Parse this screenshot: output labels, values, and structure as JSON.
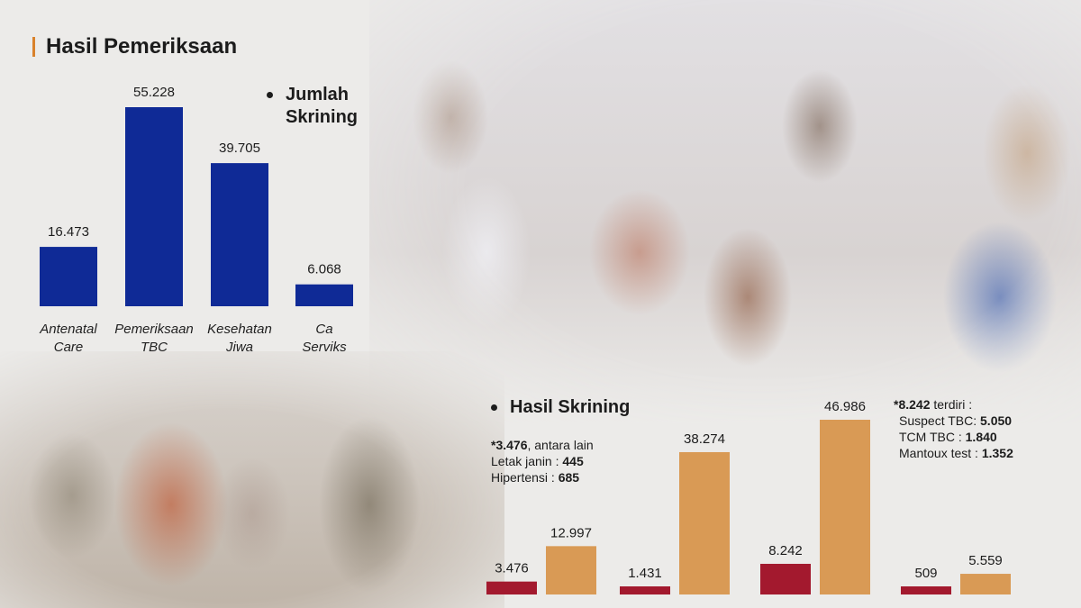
{
  "header": {
    "title": "Hasil Pemeriksaan"
  },
  "chart_data": [
    {
      "type": "bar",
      "series_label": "Jumlah Skrining",
      "categories": [
        "Antenatal Care",
        "Pemeriksaan TBC",
        "Kesehatan Jiwa",
        "Ca Serviks"
      ],
      "values": [
        16473,
        55228,
        39705,
        6068
      ],
      "value_labels": [
        "16.473",
        "55.228",
        "39.705",
        "6.068"
      ],
      "colors": [
        "#0f2a96"
      ]
    },
    {
      "type": "bar",
      "series_label": "Hasil Skrining",
      "groups": [
        {
          "values": [
            3476,
            12997
          ],
          "value_labels": [
            "3.476",
            "12.997"
          ]
        },
        {
          "values": [
            1431,
            38274
          ],
          "value_labels": [
            "1.431",
            "38.274"
          ]
        },
        {
          "values": [
            8242,
            46986
          ],
          "value_labels": [
            "8.242",
            "46.986"
          ]
        },
        {
          "values": [
            509,
            5559
          ],
          "value_labels": [
            "509",
            "5.559"
          ]
        }
      ],
      "colors": [
        "#a3192e",
        "#d99a55"
      ]
    }
  ],
  "notes": {
    "left": {
      "head_bold": "*3.476",
      "head_rest": ", antara lain",
      "lines": [
        {
          "label": "Letak janin : ",
          "value": "445"
        },
        {
          "label": "Hipertensi : ",
          "value": "685"
        }
      ]
    },
    "right": {
      "head_bold": "*8.242",
      "head_rest": " terdiri :",
      "lines": [
        {
          "label": "Suspect TBC: ",
          "value": "5.050"
        },
        {
          "label": "TCM TBC : ",
          "value": "1.840"
        },
        {
          "label": "Mantoux test : ",
          "value": "1.352"
        }
      ]
    }
  }
}
